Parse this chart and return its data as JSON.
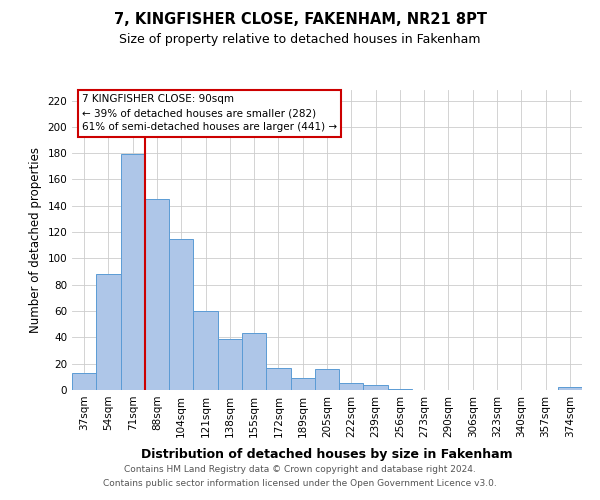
{
  "title": "7, KINGFISHER CLOSE, FAKENHAM, NR21 8PT",
  "subtitle": "Size of property relative to detached houses in Fakenham",
  "xlabel": "Distribution of detached houses by size in Fakenham",
  "ylabel": "Number of detached properties",
  "bin_labels": [
    "37sqm",
    "54sqm",
    "71sqm",
    "88sqm",
    "104sqm",
    "121sqm",
    "138sqm",
    "155sqm",
    "172sqm",
    "189sqm",
    "205sqm",
    "222sqm",
    "239sqm",
    "256sqm",
    "273sqm",
    "290sqm",
    "306sqm",
    "323sqm",
    "340sqm",
    "357sqm",
    "374sqm"
  ],
  "bar_values": [
    13,
    88,
    179,
    145,
    115,
    60,
    39,
    43,
    17,
    9,
    16,
    5,
    4,
    1,
    0,
    0,
    0,
    0,
    0,
    0,
    2
  ],
  "bar_color": "#aec6e8",
  "bar_edge_color": "#5b9bd5",
  "vline_color": "#cc0000",
  "ylim": [
    0,
    228
  ],
  "yticks": [
    0,
    20,
    40,
    60,
    80,
    100,
    120,
    140,
    160,
    180,
    200,
    220
  ],
  "annotation_title": "7 KINGFISHER CLOSE: 90sqm",
  "annotation_line1": "← 39% of detached houses are smaller (282)",
  "annotation_line2": "61% of semi-detached houses are larger (441) →",
  "annotation_box_color": "#ffffff",
  "annotation_box_edge": "#cc0000",
  "footer_line1": "Contains HM Land Registry data © Crown copyright and database right 2024.",
  "footer_line2": "Contains public sector information licensed under the Open Government Licence v3.0.",
  "title_fontsize": 10.5,
  "subtitle_fontsize": 9,
  "xlabel_fontsize": 9,
  "ylabel_fontsize": 8.5,
  "tick_fontsize": 7.5,
  "annotation_fontsize": 7.5,
  "footer_fontsize": 6.5,
  "bg_color": "#ffffff"
}
